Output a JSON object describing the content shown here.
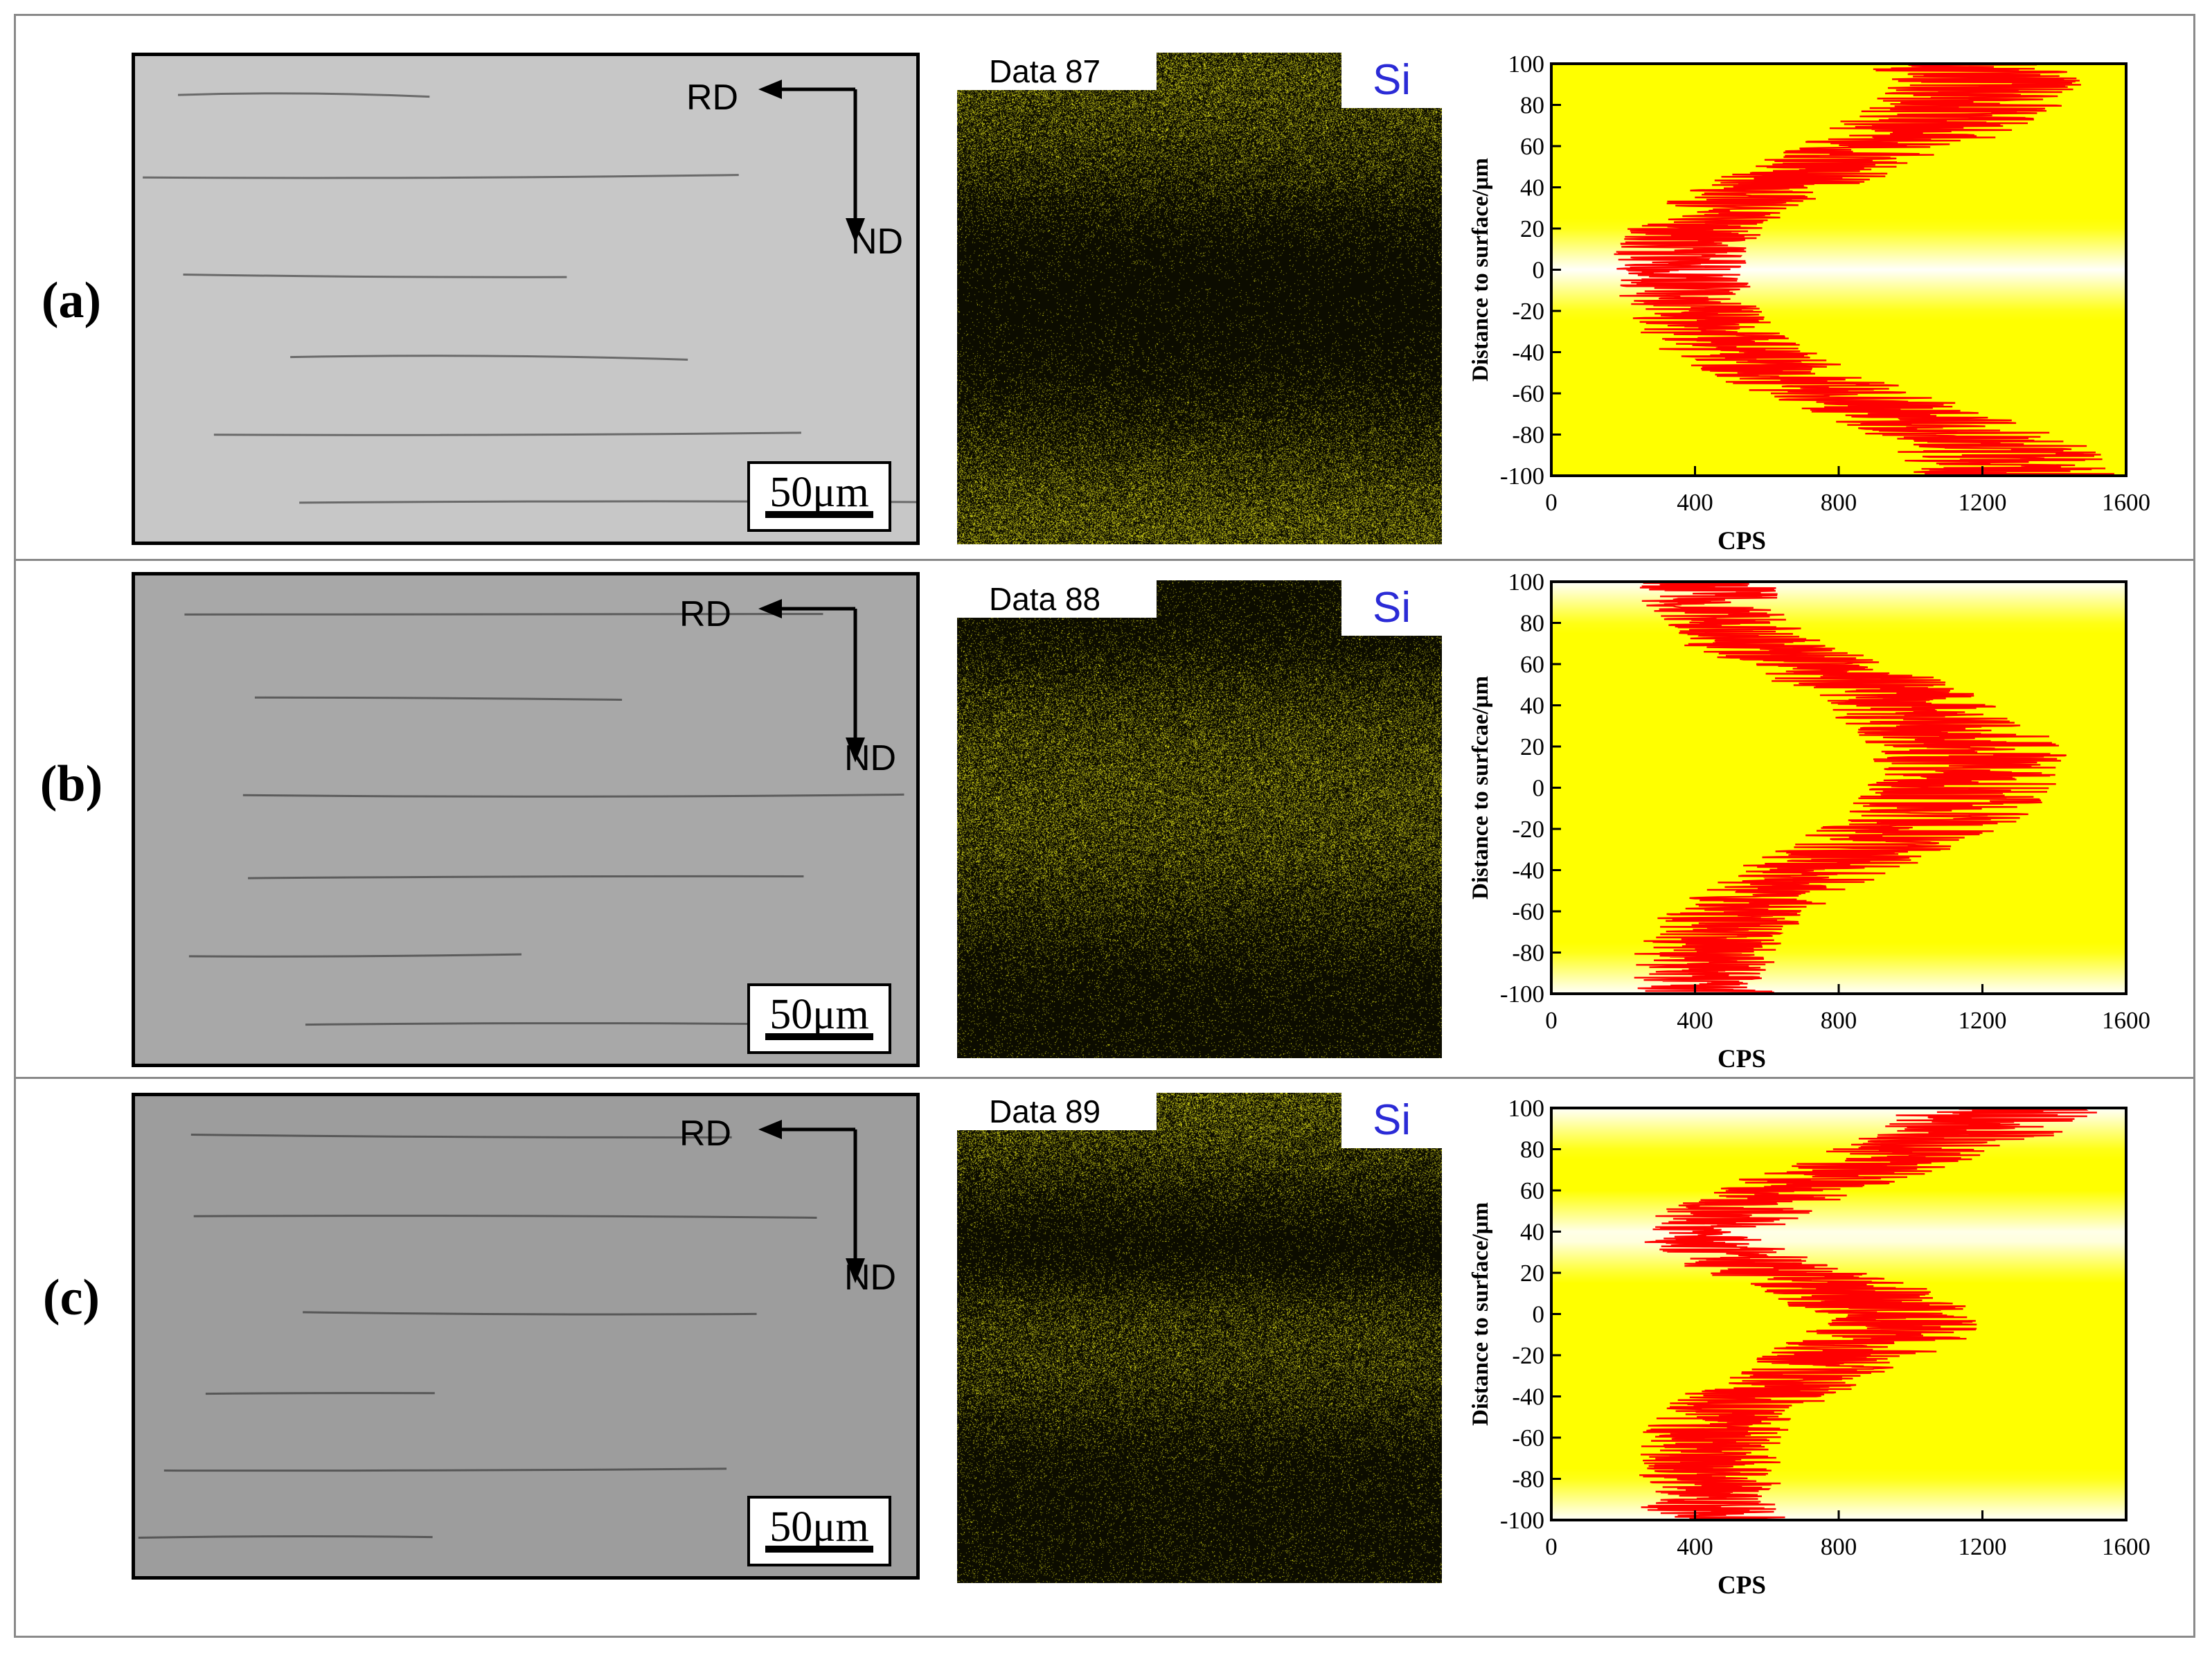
{
  "panels": [
    {
      "label": "(a)",
      "sem": {
        "rd": "RD",
        "nd": "ND",
        "scale": "50μm",
        "shade": "#c7c7c7"
      },
      "map": {
        "tag": "Data 87",
        "element": "Si",
        "profile": "a"
      },
      "chart_data": {
        "type": "line",
        "xlabel": "CPS",
        "ylabel": "Distance to surface/μm",
        "xlim": [
          0,
          1600
        ],
        "ylim": [
          -100,
          100
        ],
        "xticks": [
          "0",
          "400",
          "800",
          "1200",
          "1600"
        ],
        "yticks": [
          "100",
          "80",
          "60",
          "40",
          "20",
          "0",
          "-20",
          "-40",
          "-60",
          "-80",
          "-100"
        ],
        "grid": false,
        "series": [
          {
            "y": [
              100,
              90,
              80,
              70,
              60,
              50,
              40,
              30,
              20,
              10,
              0,
              -10,
              -20,
              -30,
              -40,
              -50,
              -60,
              -70,
              -80,
              -90,
              -100
            ],
            "x": [
              1150,
              1200,
              1150,
              1050,
              930,
              780,
              620,
              480,
              400,
              370,
              360,
              370,
              390,
              440,
              520,
              650,
              800,
              980,
              1150,
              1260,
              1300
            ],
            "color": "#ff0000"
          }
        ],
        "background": {
          "bright": "#ffff00",
          "pale": "#ffffff",
          "pale_at": [
            0
          ]
        }
      }
    },
    {
      "label": "(b)",
      "sem": {
        "rd": "RD",
        "nd": "ND",
        "scale": "50μm",
        "shade": "#a8a8a8"
      },
      "map": {
        "tag": "Data 88",
        "element": "Si",
        "profile": "b"
      },
      "chart_data": {
        "type": "line",
        "xlabel": "CPS",
        "ylabel": "Distance to surfcae/μm",
        "xlim": [
          0,
          1600
        ],
        "ylim": [
          -100,
          100
        ],
        "xticks": [
          "0",
          "400",
          "800",
          "1200",
          "1600"
        ],
        "yticks": [
          "100",
          "80",
          "60",
          "40",
          "20",
          "0",
          "-20",
          "-40",
          "-60",
          "-80",
          "-100"
        ],
        "grid": false,
        "series": [
          {
            "y": [
              100,
              90,
              80,
              70,
              60,
              50,
              40,
              30,
              20,
              10,
              0,
              -10,
              -20,
              -30,
              -40,
              -50,
              -60,
              -70,
              -80,
              -90,
              -100
            ],
            "x": [
              430,
              440,
              470,
              560,
              720,
              880,
              1000,
              1090,
              1150,
              1170,
              1150,
              1090,
              1000,
              870,
              740,
              620,
              520,
              460,
              430,
              420,
              430
            ],
            "color": "#ff0000"
          }
        ],
        "background": {
          "bright": "#ffff00",
          "pale": "#ffffff",
          "pale_at": [
            100,
            -100
          ]
        }
      }
    },
    {
      "label": "(c)",
      "sem": {
        "rd": "RD",
        "nd": "ND",
        "scale": "50μm",
        "shade": "#9d9d9d"
      },
      "map": {
        "tag": "Data 89",
        "element": "Si",
        "profile": "c"
      },
      "chart_data": {
        "type": "line",
        "xlabel": "CPS",
        "ylabel": "Distance to surface/μm",
        "xlim": [
          0,
          1600
        ],
        "ylim": [
          -100,
          100
        ],
        "xticks": [
          "0",
          "400",
          "800",
          "1200",
          "1600"
        ],
        "yticks": [
          "100",
          "80",
          "60",
          "40",
          "20",
          "0",
          "-20",
          "-40",
          "-60",
          "-80",
          "-100"
        ],
        "grid": false,
        "series": [
          {
            "y": [
              100,
              90,
              80,
              70,
              60,
              50,
              40,
              30,
              20,
              10,
              0,
              -10,
              -20,
              -30,
              -40,
              -50,
              -60,
              -70,
              -80,
              -90,
              -100
            ],
            "x": [
              1250,
              1200,
              1050,
              850,
              650,
              520,
              420,
              460,
              650,
              850,
              950,
              930,
              830,
              700,
              570,
              480,
              450,
              440,
              440,
              440,
              450
            ],
            "color": "#ff0000"
          }
        ],
        "background": {
          "bright": "#ffff00",
          "pale": "#ffffff",
          "pale_at": [
            38,
            100,
            -100
          ]
        }
      }
    }
  ]
}
